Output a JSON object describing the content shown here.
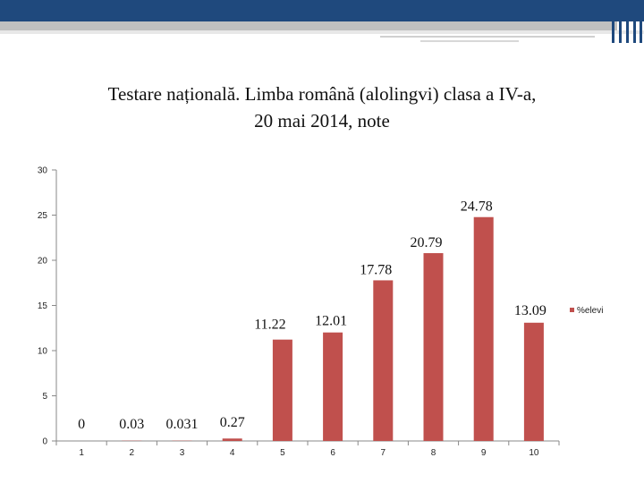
{
  "slide": {
    "title_line1": "Testare națională. Limba română (alolingvi) clasa a IV-a,",
    "title_line2": "20 mai 2014, note"
  },
  "colors": {
    "bar": "#c0504d",
    "header": "#1f497d"
  },
  "chart_data": {
    "type": "bar",
    "title": "Testare națională. Limba română (alolingvi) clasa a IV-a, 20 mai 2014, note",
    "categories": [
      "1",
      "2",
      "3",
      "4",
      "5",
      "6",
      "7",
      "8",
      "9",
      "10"
    ],
    "series": [
      {
        "name": "%elevi",
        "values": [
          0,
          0.03,
          0.031,
          0.27,
          11.22,
          12.01,
          17.78,
          20.79,
          24.78,
          13.09
        ]
      }
    ],
    "data_labels": [
      "0",
      "0.03",
      "0.031",
      "0.27",
      "11.22",
      "12.01",
      "17.78",
      "20.79",
      "24.78",
      "13.09"
    ],
    "yticks": [
      "0",
      "5",
      "10",
      "15",
      "20",
      "25",
      "30"
    ],
    "ylim": [
      0,
      30
    ],
    "xlabel": "",
    "ylabel": "",
    "legend": {
      "position": "right",
      "label": "%elevi"
    },
    "grid": false
  }
}
